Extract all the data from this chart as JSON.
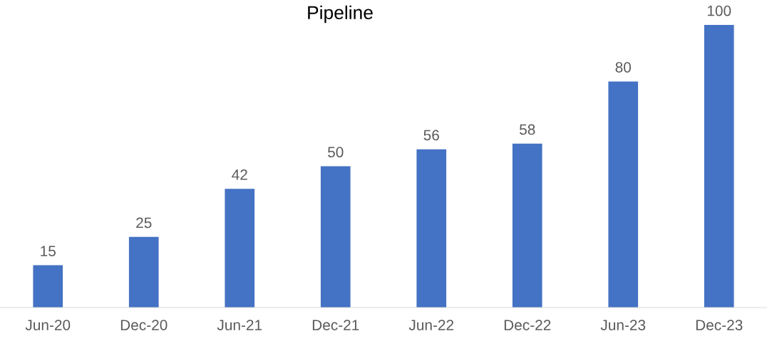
{
  "chart_data": {
    "type": "bar",
    "title": "Pipeline",
    "categories": [
      "Jun-20",
      "Dec-20",
      "Jun-21",
      "Dec-21",
      "Jun-22",
      "Dec-22",
      "Jun-23",
      "Dec-23"
    ],
    "values": [
      15,
      25,
      42,
      50,
      56,
      58,
      80,
      100
    ],
    "color": "#4472c4",
    "data_labels": true,
    "grid": false,
    "legend": false
  }
}
